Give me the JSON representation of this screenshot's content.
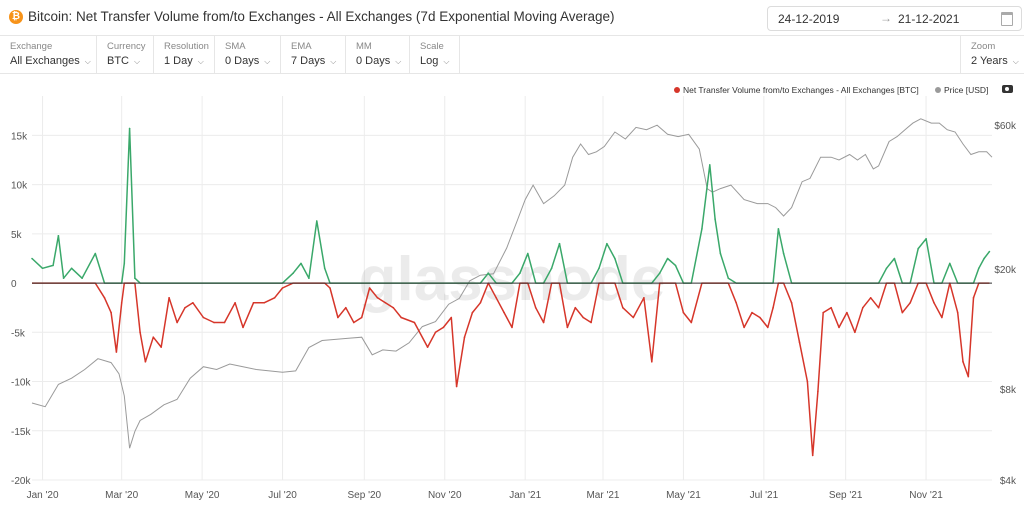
{
  "header": {
    "title": "Bitcoin: Net Transfer Volume from/to Exchanges - All Exchanges (7d Exponential Moving Average)",
    "date_start": "24-12-2019",
    "date_end": "21-12-2021",
    "arrow": "→",
    "coin_symbol": "₿"
  },
  "controls": [
    {
      "label": "Exchange",
      "value": "All Exchanges"
    },
    {
      "label": "Currency",
      "value": "BTC"
    },
    {
      "label": "Resolution",
      "value": "1 Day"
    },
    {
      "label": "SMA",
      "value": "0 Days"
    },
    {
      "label": "EMA",
      "value": "7 Days"
    },
    {
      "label": "MM",
      "value": "0 Days"
    },
    {
      "label": "Scale",
      "value": "Log"
    }
  ],
  "zoom": {
    "label": "Zoom",
    "value": "2 Years"
  },
  "watermark": "glassnode",
  "chart_data": {
    "type": "line",
    "title": "Bitcoin: Net Transfer Volume from/to Exchanges - All Exchanges (7d Exponential Moving Average)",
    "x_tick_labels": [
      "Jan '20",
      "Mar '20",
      "May '20",
      "Jul '20",
      "Sep '20",
      "Nov '20",
      "Jan '21",
      "Mar '21",
      "May '21",
      "Jul '21",
      "Sep '21",
      "Nov '21"
    ],
    "x_tick_days": [
      8,
      68,
      129,
      190,
      252,
      313,
      374,
      433,
      494,
      555,
      617,
      678
    ],
    "x_range_days": [
      0,
      728
    ],
    "y_left": {
      "ticks": [
        15000,
        10000,
        5000,
        0,
        -5000,
        -10000,
        -15000,
        -20000
      ],
      "tick_labels": [
        "15k",
        "10k",
        "5k",
        "0",
        "-5k",
        "-10k",
        "-15k",
        "-20k"
      ],
      "ylim": [
        -20000,
        19000
      ]
    },
    "y_right": {
      "scale": "log",
      "ticks": [
        60000,
        20000,
        8000,
        4000
      ],
      "tick_labels": [
        "$60k",
        "$20k",
        "$8k",
        "$4k"
      ],
      "ylim": [
        4000,
        75000
      ]
    },
    "legend": {
      "placement": "top-right"
    },
    "colors": {
      "positive": "#3aa86a",
      "negative": "#d6362a",
      "price": "#9a9a9a",
      "zero_line": "#333333",
      "grid": "#ececec"
    },
    "series": [
      {
        "name": "Net Transfer Volume from/to Exchanges - All Exchanges [BTC]",
        "points": [
          [
            0,
            2500
          ],
          [
            8,
            1500
          ],
          [
            16,
            1800
          ],
          [
            20,
            4800
          ],
          [
            24,
            500
          ],
          [
            30,
            1500
          ],
          [
            38,
            500
          ],
          [
            48,
            3000
          ],
          [
            55,
            -1500
          ],
          [
            60,
            -3000
          ],
          [
            64,
            -7000
          ],
          [
            68,
            -2000
          ],
          [
            70,
            2000
          ],
          [
            74,
            15700
          ],
          [
            78,
            500
          ],
          [
            82,
            -5000
          ],
          [
            86,
            -8000
          ],
          [
            92,
            -5500
          ],
          [
            98,
            -6500
          ],
          [
            104,
            -1500
          ],
          [
            110,
            -4000
          ],
          [
            116,
            -2500
          ],
          [
            122,
            -2000
          ],
          [
            130,
            -3500
          ],
          [
            138,
            -4000
          ],
          [
            146,
            -4000
          ],
          [
            154,
            -2000
          ],
          [
            160,
            -4500
          ],
          [
            168,
            -2000
          ],
          [
            176,
            -2000
          ],
          [
            184,
            -1500
          ],
          [
            190,
            -500
          ],
          [
            198,
            1000
          ],
          [
            204,
            2000
          ],
          [
            210,
            500
          ],
          [
            216,
            6300
          ],
          [
            222,
            1500
          ],
          [
            226,
            -500
          ],
          [
            232,
            -3500
          ],
          [
            238,
            -2500
          ],
          [
            244,
            -4000
          ],
          [
            250,
            -3500
          ],
          [
            256,
            -500
          ],
          [
            262,
            -1500
          ],
          [
            268,
            -2000
          ],
          [
            274,
            -2500
          ],
          [
            280,
            -3500
          ],
          [
            290,
            -4000
          ],
          [
            300,
            -6500
          ],
          [
            306,
            -5000
          ],
          [
            312,
            -4500
          ],
          [
            318,
            -3500
          ],
          [
            322,
            -10500
          ],
          [
            328,
            -5500
          ],
          [
            334,
            -3000
          ],
          [
            340,
            -2000
          ],
          [
            346,
            1000
          ],
          [
            352,
            -1500
          ],
          [
            358,
            -3000
          ],
          [
            364,
            -4500
          ],
          [
            370,
            1000
          ],
          [
            376,
            3000
          ],
          [
            382,
            -2500
          ],
          [
            388,
            -4000
          ],
          [
            394,
            1500
          ],
          [
            400,
            4000
          ],
          [
            406,
            -4500
          ],
          [
            412,
            -2500
          ],
          [
            418,
            -3500
          ],
          [
            424,
            -4000
          ],
          [
            430,
            1500
          ],
          [
            436,
            4000
          ],
          [
            442,
            2500
          ],
          [
            448,
            -2500
          ],
          [
            456,
            -3500
          ],
          [
            464,
            -1500
          ],
          [
            470,
            -8000
          ],
          [
            476,
            1000
          ],
          [
            482,
            2500
          ],
          [
            488,
            1800
          ],
          [
            494,
            -3000
          ],
          [
            500,
            -4000
          ],
          [
            508,
            5500
          ],
          [
            514,
            12000
          ],
          [
            518,
            6500
          ],
          [
            522,
            3000
          ],
          [
            528,
            500
          ],
          [
            534,
            -2000
          ],
          [
            540,
            -4500
          ],
          [
            546,
            -3000
          ],
          [
            552,
            -3500
          ],
          [
            558,
            -4500
          ],
          [
            562,
            -2500
          ],
          [
            566,
            5500
          ],
          [
            570,
            3000
          ],
          [
            576,
            -2000
          ],
          [
            582,
            -6000
          ],
          [
            588,
            -10000
          ],
          [
            592,
            -17500
          ],
          [
            596,
            -11000
          ],
          [
            600,
            -3000
          ],
          [
            606,
            -2500
          ],
          [
            612,
            -4500
          ],
          [
            618,
            -3000
          ],
          [
            624,
            -5000
          ],
          [
            630,
            -2500
          ],
          [
            636,
            -1500
          ],
          [
            642,
            -2500
          ],
          [
            648,
            1500
          ],
          [
            654,
            2500
          ],
          [
            660,
            -3000
          ],
          [
            666,
            -2000
          ],
          [
            672,
            3500
          ],
          [
            678,
            4500
          ],
          [
            684,
            -2000
          ],
          [
            690,
            -3500
          ],
          [
            696,
            2000
          ],
          [
            702,
            -3000
          ],
          [
            706,
            -8000
          ],
          [
            710,
            -9500
          ],
          [
            714,
            -1500
          ],
          [
            718,
            1500
          ],
          [
            722,
            2500
          ],
          [
            726,
            3200
          ]
        ]
      },
      {
        "name": "Price [USD]",
        "points": [
          [
            0,
            7200
          ],
          [
            10,
            7000
          ],
          [
            20,
            8300
          ],
          [
            30,
            8700
          ],
          [
            40,
            9300
          ],
          [
            50,
            10100
          ],
          [
            60,
            9800
          ],
          [
            66,
            9000
          ],
          [
            70,
            7600
          ],
          [
            74,
            5100
          ],
          [
            78,
            5800
          ],
          [
            82,
            6300
          ],
          [
            90,
            6600
          ],
          [
            100,
            7100
          ],
          [
            110,
            7400
          ],
          [
            120,
            8700
          ],
          [
            130,
            9500
          ],
          [
            140,
            9300
          ],
          [
            150,
            9700
          ],
          [
            160,
            9500
          ],
          [
            170,
            9300
          ],
          [
            180,
            9200
          ],
          [
            190,
            9100
          ],
          [
            200,
            9200
          ],
          [
            210,
            11000
          ],
          [
            220,
            11600
          ],
          [
            230,
            11700
          ],
          [
            240,
            11800
          ],
          [
            250,
            11900
          ],
          [
            258,
            10400
          ],
          [
            266,
            10800
          ],
          [
            276,
            10700
          ],
          [
            286,
            11400
          ],
          [
            296,
            12900
          ],
          [
            306,
            13400
          ],
          [
            316,
            15300
          ],
          [
            324,
            16000
          ],
          [
            332,
            18300
          ],
          [
            340,
            19100
          ],
          [
            350,
            19300
          ],
          [
            360,
            23500
          ],
          [
            368,
            29000
          ],
          [
            374,
            34000
          ],
          [
            380,
            38000
          ],
          [
            388,
            33000
          ],
          [
            396,
            35000
          ],
          [
            404,
            38000
          ],
          [
            410,
            47000
          ],
          [
            416,
            52000
          ],
          [
            422,
            48000
          ],
          [
            428,
            49000
          ],
          [
            434,
            51000
          ],
          [
            442,
            57000
          ],
          [
            450,
            54000
          ],
          [
            458,
            59000
          ],
          [
            466,
            58000
          ],
          [
            474,
            60000
          ],
          [
            482,
            56000
          ],
          [
            490,
            55000
          ],
          [
            498,
            56000
          ],
          [
            506,
            50000
          ],
          [
            512,
            37000
          ],
          [
            516,
            36000
          ],
          [
            522,
            37000
          ],
          [
            530,
            38000
          ],
          [
            540,
            34000
          ],
          [
            550,
            33000
          ],
          [
            558,
            33000
          ],
          [
            564,
            32000
          ],
          [
            570,
            30000
          ],
          [
            576,
            32000
          ],
          [
            584,
            39000
          ],
          [
            590,
            40000
          ],
          [
            598,
            47000
          ],
          [
            606,
            47000
          ],
          [
            612,
            46000
          ],
          [
            620,
            48000
          ],
          [
            626,
            46000
          ],
          [
            632,
            48000
          ],
          [
            638,
            43000
          ],
          [
            642,
            44000
          ],
          [
            650,
            53000
          ],
          [
            656,
            55000
          ],
          [
            662,
            58000
          ],
          [
            668,
            61000
          ],
          [
            674,
            63000
          ],
          [
            682,
            61000
          ],
          [
            688,
            61000
          ],
          [
            694,
            58000
          ],
          [
            700,
            57000
          ],
          [
            706,
            52000
          ],
          [
            712,
            48000
          ],
          [
            718,
            49000
          ],
          [
            724,
            49000
          ],
          [
            728,
            47000
          ]
        ]
      }
    ]
  }
}
